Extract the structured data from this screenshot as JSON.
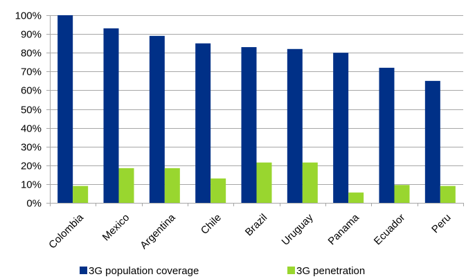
{
  "chart_data": {
    "type": "bar",
    "categories": [
      "Colombia",
      "Mexico",
      "Argentina",
      "Chile",
      "Brazil",
      "Uruguay",
      "Panama",
      "Ecuador",
      "Peru"
    ],
    "series": [
      {
        "name": "3G population coverage",
        "color": "#003087",
        "values": [
          100,
          93,
          89,
          85,
          83,
          82,
          80,
          72,
          65
        ]
      },
      {
        "name": "3G penetration",
        "color": "#99d62f",
        "values": [
          9,
          18.5,
          18.5,
          13,
          21.5,
          21.5,
          5.5,
          9.5,
          9
        ]
      }
    ],
    "ylim": [
      0,
      100
    ],
    "yticks": [
      0,
      10,
      20,
      30,
      40,
      50,
      60,
      70,
      80,
      90,
      100
    ],
    "ytick_labels": [
      "0%",
      "10%",
      "20%",
      "30%",
      "40%",
      "50%",
      "60%",
      "70%",
      "80%",
      "90%",
      "100%"
    ],
    "grid": true,
    "legend_position": "bottom",
    "colors": {
      "grid": "#a6a6a6",
      "axis": "#a6a6a6"
    }
  }
}
